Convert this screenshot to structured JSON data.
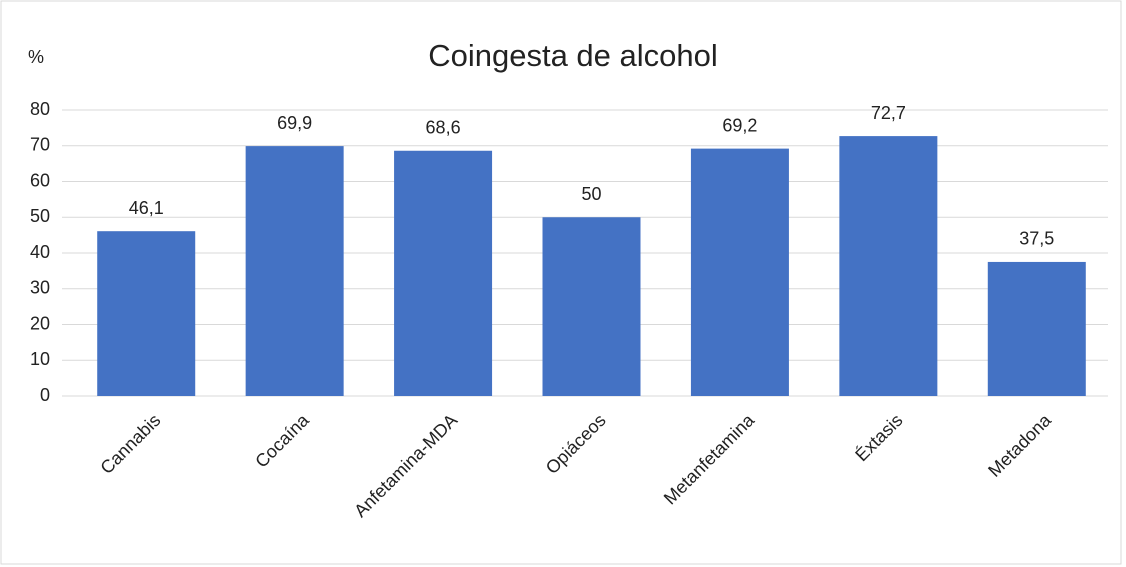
{
  "chart_data": {
    "type": "bar",
    "title": "Coingesta de alcohol",
    "y_label": "%",
    "categories": [
      "Cannabis",
      "Cocaína",
      "Anfetamina-MDA",
      "Opiáceos",
      "Metanfetamina",
      "Éxtasis",
      "Metadona"
    ],
    "values": [
      46.1,
      69.9,
      68.6,
      50,
      69.2,
      72.7,
      37.5
    ],
    "value_labels": [
      "46,1",
      "69,9",
      "68,6",
      "50",
      "69,2",
      "72,7",
      "37,5"
    ],
    "color": "#4472c4",
    "ylim": [
      0,
      80
    ],
    "yticks": [
      0,
      10,
      20,
      30,
      40,
      50,
      60,
      70,
      80
    ],
    "grid": true
  }
}
